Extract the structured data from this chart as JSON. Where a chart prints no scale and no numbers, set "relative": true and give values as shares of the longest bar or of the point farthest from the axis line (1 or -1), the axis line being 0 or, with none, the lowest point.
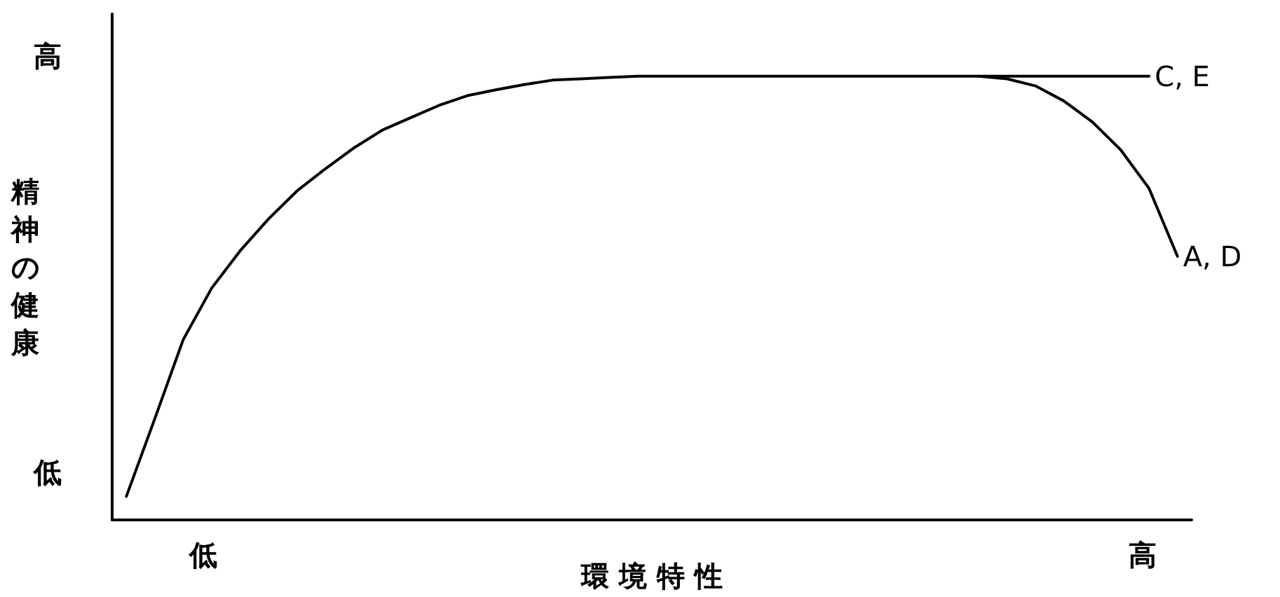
{
  "chart_data": {
    "type": "line",
    "relative": true,
    "xlabel": "環 境 特 性",
    "ylabel": "精神の健康",
    "annotations": [
      "高",
      "低",
      "低",
      "高"
    ],
    "categories": [
      null,
      null,
      null,
      null,
      null,
      null,
      null,
      null,
      null,
      null,
      null,
      null,
      null,
      null,
      null,
      null,
      null,
      null,
      null,
      null,
      null,
      null,
      null,
      null,
      null,
      null,
      null,
      null,
      null,
      null,
      null,
      null,
      null,
      null,
      null,
      null,
      null,
      null
    ],
    "series": [
      {
        "name": "C, E",
        "color": "#000000",
        "values": [
          0.053,
          0.228,
          0.406,
          0.522,
          0.606,
          0.678,
          0.741,
          0.791,
          0.838,
          0.878,
          0.906,
          0.934,
          0.956,
          0.969,
          0.981,
          0.991,
          0.994,
          0.997,
          1,
          1,
          1,
          1,
          1,
          1,
          1,
          1,
          1,
          1,
          1,
          1,
          1,
          1,
          1,
          1,
          1,
          1,
          1,
          null
        ]
      },
      {
        "name": "A, D",
        "color": "#000000",
        "values": [
          null,
          null,
          null,
          null,
          null,
          null,
          null,
          null,
          null,
          null,
          null,
          null,
          null,
          null,
          null,
          null,
          null,
          null,
          null,
          null,
          null,
          null,
          null,
          null,
          null,
          null,
          null,
          null,
          null,
          null,
          1,
          0.994,
          0.978,
          0.944,
          0.897,
          0.834,
          0.747,
          0.594
        ]
      }
    ],
    "grid": false,
    "legend": false,
    "marker": "none",
    "line_style": "solid"
  }
}
